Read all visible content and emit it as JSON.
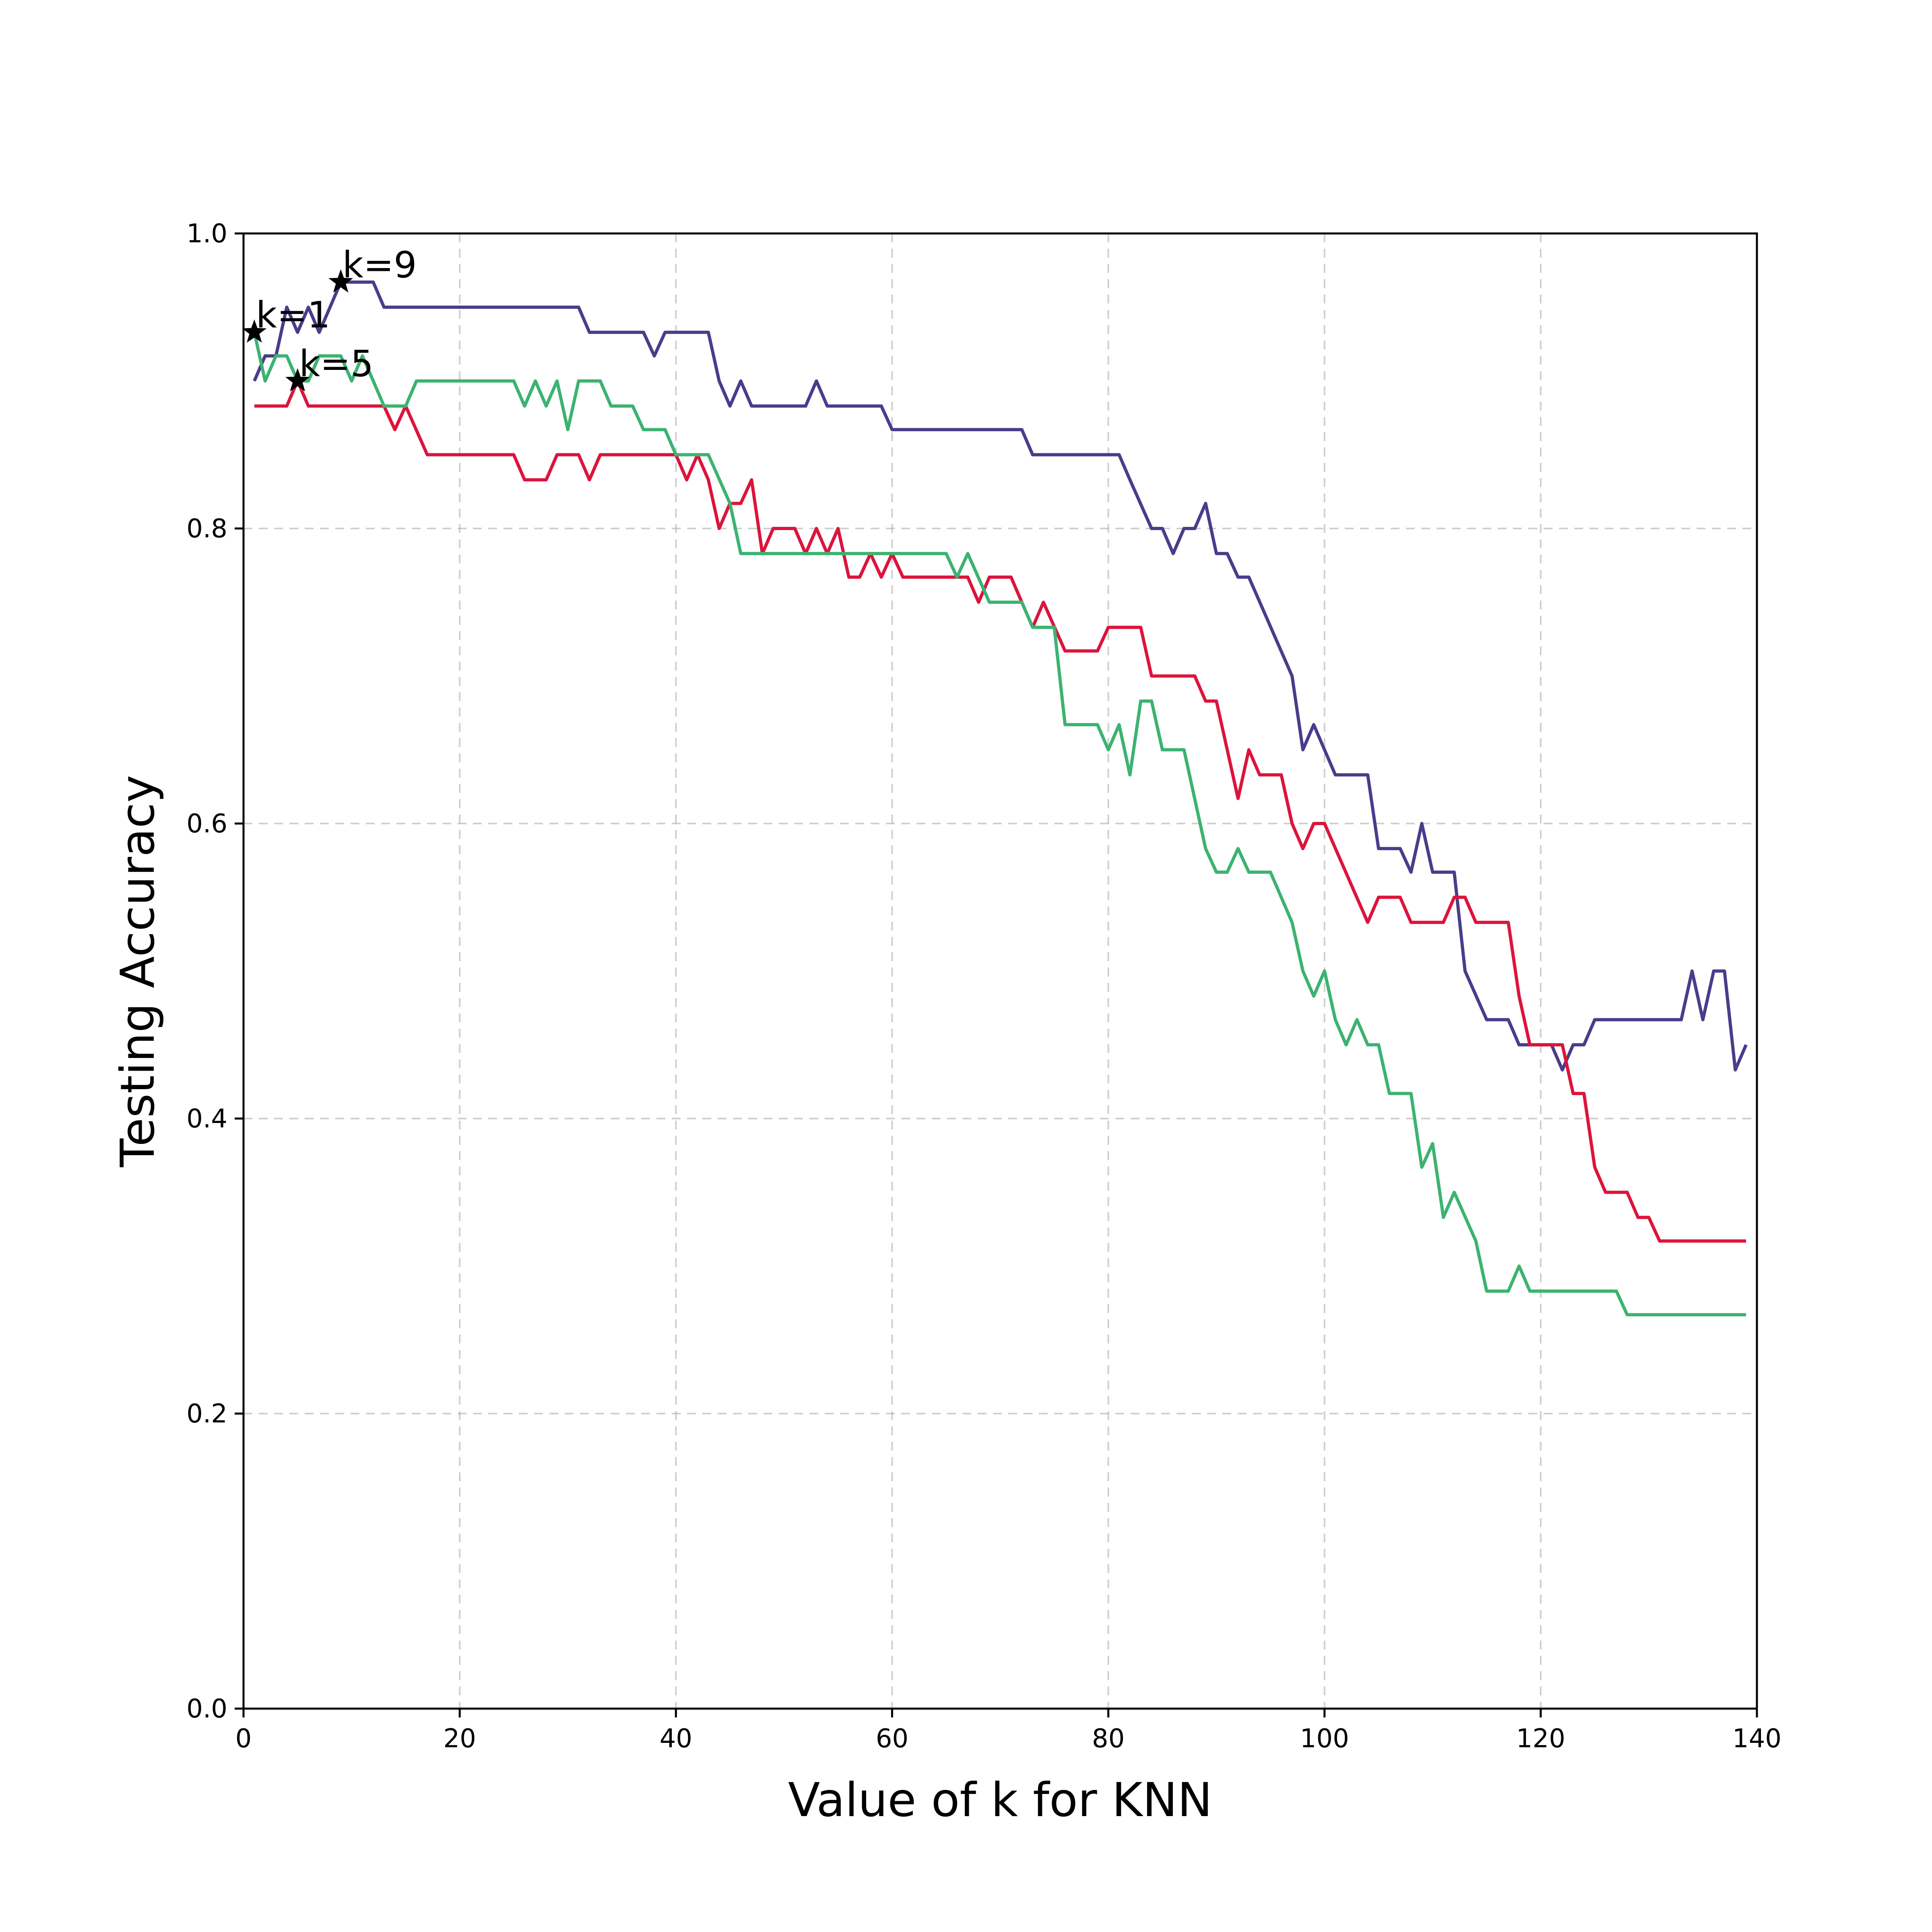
{
  "chart_data": {
    "type": "line",
    "title": "",
    "xlabel": "Value of k for KNN",
    "ylabel": "Testing Accuracy",
    "xlim": [
      0,
      140
    ],
    "ylim": [
      0,
      1
    ],
    "xticks": [
      0,
      20,
      40,
      60,
      80,
      100,
      120,
      140
    ],
    "xtick_labels": [
      "0",
      "20",
      "40",
      "60",
      "80",
      "100",
      "120",
      "140"
    ],
    "yticks": [
      0,
      0.2,
      0.4,
      0.6,
      0.8,
      1.0
    ],
    "ytick_labels": [
      "0.0",
      "0.2",
      "0.4",
      "0.6",
      "0.8",
      "1.0"
    ],
    "grid": true,
    "legend": "none",
    "series": [
      {
        "color": "#483d8b",
        "points": [
          [
            1,
            0.9
          ],
          [
            2,
            0.917
          ],
          [
            3,
            0.917
          ],
          [
            4,
            0.95
          ],
          [
            5,
            0.933
          ],
          [
            6,
            0.95
          ],
          [
            7,
            0.933
          ],
          [
            8,
            0.95
          ],
          [
            9,
            0.967
          ],
          [
            10,
            0.967
          ],
          [
            11,
            0.967
          ],
          [
            12,
            0.967
          ],
          [
            13,
            0.95
          ],
          [
            20,
            0.95
          ],
          [
            31,
            0.95
          ],
          [
            32,
            0.933
          ],
          [
            37,
            0.933
          ],
          [
            38,
            0.917
          ],
          [
            39,
            0.933
          ],
          [
            43,
            0.933
          ],
          [
            44,
            0.9
          ],
          [
            45,
            0.883
          ],
          [
            46,
            0.9
          ],
          [
            47,
            0.883
          ],
          [
            52,
            0.883
          ],
          [
            53,
            0.9
          ],
          [
            54,
            0.883
          ],
          [
            59,
            0.883
          ],
          [
            60,
            0.867
          ],
          [
            72,
            0.867
          ],
          [
            73,
            0.85
          ],
          [
            81,
            0.85
          ],
          [
            82,
            0.833
          ],
          [
            84,
            0.8
          ],
          [
            85,
            0.8
          ],
          [
            86,
            0.783
          ],
          [
            87,
            0.8
          ],
          [
            88,
            0.8
          ],
          [
            89,
            0.817
          ],
          [
            90,
            0.783
          ],
          [
            91,
            0.783
          ],
          [
            92,
            0.767
          ],
          [
            93,
            0.767
          ],
          [
            97,
            0.7
          ],
          [
            98,
            0.65
          ],
          [
            99,
            0.667
          ],
          [
            101,
            0.633
          ],
          [
            104,
            0.633
          ],
          [
            105,
            0.583
          ],
          [
            107,
            0.583
          ],
          [
            108,
            0.567
          ],
          [
            109,
            0.6
          ],
          [
            110,
            0.567
          ],
          [
            112,
            0.567
          ],
          [
            113,
            0.5
          ],
          [
            115,
            0.467
          ],
          [
            117,
            0.467
          ],
          [
            118,
            0.45
          ],
          [
            121,
            0.45
          ],
          [
            122,
            0.433
          ],
          [
            123,
            0.45
          ],
          [
            124,
            0.45
          ],
          [
            125,
            0.467
          ],
          [
            133,
            0.467
          ],
          [
            134,
            0.5
          ],
          [
            135,
            0.467
          ],
          [
            136,
            0.5
          ],
          [
            137,
            0.5
          ],
          [
            138,
            0.433
          ],
          [
            139,
            0.45
          ]
        ]
      },
      {
        "color": "#dc143c",
        "points": [
          [
            1,
            0.883
          ],
          [
            4,
            0.883
          ],
          [
            5,
            0.9
          ],
          [
            6,
            0.883
          ],
          [
            13,
            0.883
          ],
          [
            14,
            0.867
          ],
          [
            15,
            0.883
          ],
          [
            17,
            0.85
          ],
          [
            25,
            0.85
          ],
          [
            26,
            0.833
          ],
          [
            28,
            0.833
          ],
          [
            29,
            0.85
          ],
          [
            31,
            0.85
          ],
          [
            32,
            0.833
          ],
          [
            33,
            0.85
          ],
          [
            40,
            0.85
          ],
          [
            41,
            0.833
          ],
          [
            42,
            0.85
          ],
          [
            43,
            0.833
          ],
          [
            44,
            0.8
          ],
          [
            45,
            0.817
          ],
          [
            46,
            0.817
          ],
          [
            47,
            0.833
          ],
          [
            48,
            0.783
          ],
          [
            49,
            0.8
          ],
          [
            51,
            0.8
          ],
          [
            52,
            0.783
          ],
          [
            53,
            0.8
          ],
          [
            54,
            0.783
          ],
          [
            55,
            0.8
          ],
          [
            56,
            0.767
          ],
          [
            57,
            0.767
          ],
          [
            58,
            0.783
          ],
          [
            59,
            0.767
          ],
          [
            60,
            0.783
          ],
          [
            61,
            0.767
          ],
          [
            67,
            0.767
          ],
          [
            68,
            0.75
          ],
          [
            69,
            0.767
          ],
          [
            71,
            0.767
          ],
          [
            72,
            0.75
          ],
          [
            73,
            0.733
          ],
          [
            74,
            0.75
          ],
          [
            76,
            0.717
          ],
          [
            79,
            0.717
          ],
          [
            80,
            0.733
          ],
          [
            83,
            0.733
          ],
          [
            84,
            0.7
          ],
          [
            88,
            0.7
          ],
          [
            89,
            0.683
          ],
          [
            90,
            0.683
          ],
          [
            92,
            0.617
          ],
          [
            93,
            0.65
          ],
          [
            94,
            0.633
          ],
          [
            96,
            0.633
          ],
          [
            97,
            0.6
          ],
          [
            98,
            0.583
          ],
          [
            99,
            0.6
          ],
          [
            100,
            0.6
          ],
          [
            104,
            0.533
          ],
          [
            105,
            0.55
          ],
          [
            107,
            0.55
          ],
          [
            108,
            0.533
          ],
          [
            111,
            0.533
          ],
          [
            112,
            0.55
          ],
          [
            113,
            0.55
          ],
          [
            114,
            0.533
          ],
          [
            117,
            0.533
          ],
          [
            118,
            0.483
          ],
          [
            119,
            0.45
          ],
          [
            122,
            0.45
          ],
          [
            123,
            0.417
          ],
          [
            124,
            0.417
          ],
          [
            125,
            0.367
          ],
          [
            126,
            0.35
          ],
          [
            128,
            0.35
          ],
          [
            129,
            0.333
          ],
          [
            130,
            0.333
          ],
          [
            131,
            0.317
          ],
          [
            139,
            0.317
          ]
        ]
      },
      {
        "color": "#3cb371",
        "points": [
          [
            1,
            0.933
          ],
          [
            2,
            0.9
          ],
          [
            3,
            0.917
          ],
          [
            4,
            0.917
          ],
          [
            5,
            0.9
          ],
          [
            6,
            0.9
          ],
          [
            7,
            0.917
          ],
          [
            9,
            0.917
          ],
          [
            10,
            0.9
          ],
          [
            11,
            0.917
          ],
          [
            12,
            0.9
          ],
          [
            13,
            0.883
          ],
          [
            15,
            0.883
          ],
          [
            16,
            0.9
          ],
          [
            25,
            0.9
          ],
          [
            26,
            0.883
          ],
          [
            27,
            0.9
          ],
          [
            28,
            0.883
          ],
          [
            29,
            0.9
          ],
          [
            30,
            0.867
          ],
          [
            31,
            0.9
          ],
          [
            33,
            0.9
          ],
          [
            34,
            0.883
          ],
          [
            36,
            0.883
          ],
          [
            37,
            0.867
          ],
          [
            39,
            0.867
          ],
          [
            40,
            0.85
          ],
          [
            43,
            0.85
          ],
          [
            45,
            0.817
          ],
          [
            46,
            0.783
          ],
          [
            65,
            0.783
          ],
          [
            66,
            0.767
          ],
          [
            67,
            0.783
          ],
          [
            69,
            0.75
          ],
          [
            72,
            0.75
          ],
          [
            73,
            0.733
          ],
          [
            75,
            0.733
          ],
          [
            76,
            0.667
          ],
          [
            79,
            0.667
          ],
          [
            80,
            0.65
          ],
          [
            81,
            0.667
          ],
          [
            82,
            0.633
          ],
          [
            83,
            0.683
          ],
          [
            84,
            0.683
          ],
          [
            85,
            0.65
          ],
          [
            87,
            0.65
          ],
          [
            89,
            0.583
          ],
          [
            90,
            0.567
          ],
          [
            91,
            0.567
          ],
          [
            92,
            0.583
          ],
          [
            93,
            0.567
          ],
          [
            95,
            0.567
          ],
          [
            97,
            0.533
          ],
          [
            98,
            0.5
          ],
          [
            99,
            0.483
          ],
          [
            100,
            0.5
          ],
          [
            101,
            0.467
          ],
          [
            102,
            0.45
          ],
          [
            103,
            0.467
          ],
          [
            104,
            0.45
          ],
          [
            105,
            0.45
          ],
          [
            106,
            0.417
          ],
          [
            108,
            0.417
          ],
          [
            109,
            0.367
          ],
          [
            110,
            0.383
          ],
          [
            111,
            0.333
          ],
          [
            112,
            0.35
          ],
          [
            114,
            0.317
          ],
          [
            115,
            0.283
          ],
          [
            117,
            0.283
          ],
          [
            118,
            0.3
          ],
          [
            119,
            0.283
          ],
          [
            127,
            0.283
          ],
          [
            128,
            0.267
          ],
          [
            139,
            0.267
          ]
        ]
      }
    ],
    "annotations": [
      {
        "text": "k=1",
        "x": 1,
        "y": 0.933
      },
      {
        "text": "k=5",
        "x": 5,
        "y": 0.9
      },
      {
        "text": "k=9",
        "x": 9,
        "y": 0.967
      }
    ]
  }
}
